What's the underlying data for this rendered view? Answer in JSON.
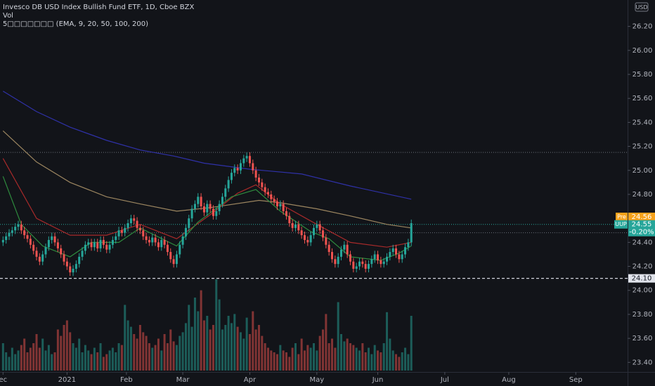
{
  "chart_data": {
    "type": "candlestick",
    "title": "Invesco DB USD Index Bullish Fund ETF, 1D, Cboe BZX",
    "volume_label": "Vol",
    "indicator_label": "5□□□□□□□ (EMA, 9, 20, 50, 100, 200)",
    "currency": "USD",
    "up_color": "#26a69a",
    "down_color": "#ef5350",
    "xlim": [
      -1,
      205
    ],
    "xticks": [
      {
        "value": 0,
        "label": "ec"
      },
      {
        "value": 21,
        "label": "2021"
      },
      {
        "value": 40.5,
        "label": "Feb"
      },
      {
        "value": 59,
        "label": "Mar"
      },
      {
        "value": 81,
        "label": "Apr"
      },
      {
        "value": 103,
        "label": "May"
      },
      {
        "value": 123,
        "label": "Jun"
      },
      {
        "value": 145,
        "label": "Jul"
      },
      {
        "value": 166,
        "label": "Aug"
      },
      {
        "value": 188,
        "label": "Sep"
      }
    ],
    "ylim": [
      23.32,
      26.42
    ],
    "yticks": [
      {
        "value": 26.2,
        "label": "26.20"
      },
      {
        "value": 26,
        "label": "26.00"
      },
      {
        "value": 25.8,
        "label": "25.80"
      },
      {
        "value": 25.6,
        "label": "25.60"
      },
      {
        "value": 25.4,
        "label": "25.40"
      },
      {
        "value": 25.2,
        "label": "25.20"
      },
      {
        "value": 25,
        "label": "25.00"
      },
      {
        "value": 24.8,
        "label": "24.80"
      },
      {
        "value": 24.6,
        "label": "24.60"
      },
      {
        "value": 24.4,
        "label": "24.40"
      },
      {
        "value": 24.2,
        "label": "24.20"
      },
      {
        "value": 24,
        "label": "24.00"
      },
      {
        "value": 23.8,
        "label": "23.80"
      },
      {
        "value": 23.6,
        "label": "23.60"
      },
      {
        "value": 23.4,
        "label": "23.40"
      }
    ],
    "candles": {
      "open": [
        24.4,
        24.42,
        24.45,
        24.48,
        24.5,
        24.53,
        24.55,
        24.5,
        24.46,
        24.43,
        24.38,
        24.33,
        24.28,
        24.24,
        24.3,
        24.36,
        24.42,
        24.45,
        24.4,
        24.35,
        24.3,
        24.24,
        24.2,
        24.15,
        24.18,
        24.22,
        24.28,
        24.33,
        24.38,
        24.4,
        24.36,
        24.4,
        24.35,
        24.42,
        24.38,
        24.34,
        24.38,
        24.42,
        24.45,
        24.5,
        24.48,
        24.52,
        24.56,
        24.6,
        24.58,
        24.52,
        24.5,
        24.45,
        24.42,
        24.4,
        24.44,
        24.4,
        24.36,
        24.42,
        24.38,
        24.32,
        24.26,
        24.22,
        24.3,
        24.38,
        24.45,
        24.52,
        24.6,
        24.68,
        24.72,
        24.78,
        24.7,
        24.65,
        24.72,
        24.68,
        24.62,
        24.66,
        24.72,
        24.78,
        24.85,
        24.92,
        24.98,
        25.02,
        25.0,
        25.06,
        25.1,
        25.12,
        25.06,
        25.0,
        24.94,
        24.9,
        24.86,
        24.82,
        24.8,
        24.76,
        24.74,
        24.7,
        24.72,
        24.66,
        24.62,
        24.56,
        24.52,
        24.55,
        24.5,
        24.46,
        24.42,
        24.4,
        24.46,
        24.52,
        24.55,
        24.5,
        24.44,
        24.38,
        24.32,
        24.26,
        24.22,
        24.28,
        24.34,
        24.38,
        24.3,
        24.24,
        24.18,
        24.2,
        24.24,
        24.22,
        24.18,
        24.22,
        24.26,
        24.3,
        24.25,
        24.22,
        24.24,
        24.28,
        24.32,
        24.35,
        24.3,
        24.26,
        24.3,
        24.36,
        24.4
      ],
      "high": [
        24.45,
        24.48,
        24.51,
        24.53,
        24.56,
        24.58,
        24.58,
        24.53,
        24.49,
        24.46,
        24.41,
        24.36,
        24.31,
        24.33,
        24.39,
        24.45,
        24.48,
        24.48,
        24.43,
        24.38,
        24.33,
        24.27,
        24.23,
        24.21,
        24.25,
        24.31,
        24.36,
        24.41,
        24.43,
        24.43,
        24.43,
        24.43,
        24.45,
        24.45,
        24.41,
        24.41,
        24.45,
        24.48,
        24.53,
        24.53,
        24.55,
        24.59,
        24.63,
        24.63,
        24.61,
        24.55,
        24.53,
        24.48,
        24.45,
        24.47,
        24.47,
        24.43,
        24.45,
        24.45,
        24.41,
        24.35,
        24.29,
        24.33,
        24.41,
        24.48,
        24.55,
        24.63,
        24.71,
        24.75,
        24.81,
        24.81,
        24.73,
        24.75,
        24.75,
        24.71,
        24.69,
        24.75,
        24.81,
        24.88,
        24.95,
        25.01,
        25.05,
        25.05,
        25.09,
        25.13,
        25.15,
        25.15,
        25.09,
        25.03,
        24.97,
        24.93,
        24.89,
        24.85,
        24.83,
        24.79,
        24.77,
        24.75,
        24.75,
        24.69,
        24.65,
        24.59,
        24.58,
        24.58,
        24.53,
        24.49,
        24.45,
        24.49,
        24.55,
        24.58,
        24.58,
        24.53,
        24.47,
        24.41,
        24.35,
        24.29,
        24.31,
        24.37,
        24.41,
        24.41,
        24.33,
        24.27,
        24.23,
        24.27,
        24.27,
        24.25,
        24.25,
        24.29,
        24.33,
        24.33,
        24.28,
        24.27,
        24.31,
        24.35,
        24.38,
        24.38,
        24.33,
        24.33,
        24.39,
        24.43,
        24.59
      ],
      "low": [
        24.37,
        24.39,
        24.42,
        24.45,
        24.47,
        24.5,
        24.47,
        24.43,
        24.4,
        24.35,
        24.3,
        24.25,
        24.21,
        24.21,
        24.27,
        24.33,
        24.39,
        24.37,
        24.32,
        24.27,
        24.21,
        24.17,
        24.12,
        24.12,
        24.15,
        24.19,
        24.25,
        24.3,
        24.35,
        24.33,
        24.33,
        24.32,
        24.32,
        24.35,
        24.31,
        24.31,
        24.35,
        24.39,
        24.42,
        24.45,
        24.45,
        24.49,
        24.53,
        24.55,
        24.49,
        24.47,
        24.42,
        24.39,
        24.37,
        24.37,
        24.37,
        24.33,
        24.33,
        24.35,
        24.29,
        24.23,
        24.19,
        24.19,
        24.27,
        24.35,
        24.42,
        24.49,
        24.57,
        24.65,
        24.69,
        24.67,
        24.62,
        24.62,
        24.65,
        24.59,
        24.59,
        24.63,
        24.69,
        24.75,
        24.82,
        24.89,
        24.95,
        24.97,
        24.97,
        25.03,
        25.07,
        25.03,
        24.97,
        24.91,
        24.87,
        24.83,
        24.79,
        24.77,
        24.73,
        24.71,
        24.67,
        24.67,
        24.63,
        24.59,
        24.53,
        24.49,
        24.49,
        24.47,
        24.43,
        24.39,
        24.37,
        24.37,
        24.43,
        24.49,
        24.47,
        24.41,
        24.35,
        24.29,
        24.23,
        24.19,
        24.19,
        24.25,
        24.31,
        24.27,
        24.21,
        24.15,
        24.15,
        24.17,
        24.19,
        24.15,
        24.15,
        24.19,
        24.23,
        24.22,
        24.19,
        24.19,
        24.21,
        24.25,
        24.29,
        24.27,
        24.23,
        24.23,
        24.27,
        24.33,
        24.37
      ],
      "close": [
        24.42,
        24.45,
        24.48,
        24.5,
        24.53,
        24.55,
        24.5,
        24.46,
        24.43,
        24.38,
        24.33,
        24.28,
        24.24,
        24.3,
        24.36,
        24.42,
        24.45,
        24.4,
        24.35,
        24.3,
        24.24,
        24.2,
        24.15,
        24.18,
        24.22,
        24.28,
        24.33,
        24.38,
        24.4,
        24.36,
        24.4,
        24.35,
        24.42,
        24.38,
        24.34,
        24.38,
        24.42,
        24.45,
        24.5,
        24.48,
        24.52,
        24.56,
        24.6,
        24.58,
        24.52,
        24.5,
        24.45,
        24.42,
        24.4,
        24.44,
        24.4,
        24.36,
        24.42,
        24.38,
        24.32,
        24.26,
        24.22,
        24.3,
        24.38,
        24.45,
        24.52,
        24.6,
        24.68,
        24.72,
        24.78,
        24.7,
        24.65,
        24.72,
        24.68,
        24.62,
        24.66,
        24.72,
        24.78,
        24.85,
        24.92,
        24.98,
        25.02,
        25.0,
        25.06,
        25.1,
        25.12,
        25.06,
        25.0,
        24.94,
        24.9,
        24.86,
        24.82,
        24.8,
        24.76,
        24.74,
        24.7,
        24.72,
        24.66,
        24.62,
        24.56,
        24.52,
        24.55,
        24.5,
        24.46,
        24.42,
        24.4,
        24.46,
        24.52,
        24.55,
        24.5,
        24.44,
        24.38,
        24.32,
        24.26,
        24.22,
        24.28,
        24.34,
        24.38,
        24.3,
        24.24,
        24.18,
        24.2,
        24.24,
        24.22,
        24.18,
        24.22,
        24.26,
        24.3,
        24.25,
        24.22,
        24.24,
        24.28,
        24.32,
        24.35,
        24.3,
        24.26,
        24.3,
        24.36,
        24.4,
        24.56
      ]
    },
    "volume": [
      30,
      20,
      15,
      25,
      18,
      22,
      28,
      35,
      20,
      25,
      30,
      40,
      25,
      35,
      22,
      28,
      18,
      20,
      45,
      38,
      50,
      55,
      42,
      30,
      25,
      35,
      20,
      28,
      22,
      18,
      25,
      20,
      30,
      15,
      18,
      22,
      25,
      20,
      30,
      28,
      72,
      55,
      48,
      40,
      35,
      50,
      42,
      38,
      30,
      25,
      28,
      35,
      22,
      40,
      30,
      45,
      32,
      28,
      38,
      42,
      52,
      72,
      48,
      80,
      65,
      88,
      55,
      60,
      45,
      50,
      100,
      78,
      45,
      50,
      60,
      52,
      62,
      48,
      42,
      35,
      58,
      40,
      65,
      45,
      50,
      38,
      30,
      25,
      22,
      20,
      18,
      28,
      22,
      20,
      15,
      25,
      30,
      18,
      35,
      22,
      28,
      25,
      30,
      22,
      38,
      45,
      62,
      30,
      35,
      25,
      75,
      40,
      32,
      35,
      30,
      28,
      25,
      22,
      30,
      20,
      25,
      18,
      28,
      22,
      20,
      30,
      64,
      35,
      22,
      18,
      15,
      20,
      25,
      18,
      60
    ],
    "series": [
      {
        "color": "#2f31a8",
        "x": [
          0,
          11,
          22,
          34,
          45,
          56,
          66,
          81,
          98,
          114,
          134
        ],
        "values": [
          25.66,
          25.49,
          25.36,
          25.25,
          25.17,
          25.12,
          25.06,
          25.01,
          24.97,
          24.87,
          24.76
        ]
      },
      {
        "color": "#9c8660",
        "x": [
          0,
          11,
          22,
          34,
          45,
          57,
          68,
          84,
          91,
          103,
          114,
          126,
          134
        ],
        "values": [
          25.33,
          25.07,
          24.9,
          24.78,
          24.72,
          24.66,
          24.69,
          24.75,
          24.73,
          24.68,
          24.62,
          24.55,
          24.52
        ]
      },
      {
        "color": "#a82a2a",
        "x": [
          0,
          11,
          22,
          34,
          45,
          57,
          68,
          77,
          83,
          91,
          103,
          114,
          126,
          134
        ],
        "values": [
          25.1,
          24.6,
          24.46,
          24.46,
          24.55,
          24.43,
          24.63,
          24.81,
          24.88,
          24.72,
          24.55,
          24.4,
          24.36,
          24.4
        ]
      },
      {
        "color": "#2e8b3e",
        "x": [
          0,
          6,
          13,
          22,
          29,
          38,
          45,
          57,
          64,
          75,
          83,
          91,
          101,
          107,
          114,
          124,
          130,
          134
        ],
        "values": [
          24.95,
          24.55,
          24.37,
          24.28,
          24.4,
          24.4,
          24.52,
          24.37,
          24.57,
          24.78,
          24.84,
          24.66,
          24.49,
          24.43,
          24.28,
          24.25,
          24.31,
          24.37
        ]
      }
    ],
    "dotted_lines": [
      25.15,
      24.48,
      24.55
    ],
    "pre": {
      "label": "Pre",
      "value": 24.56
    },
    "last": {
      "symbol": "UUP",
      "value": 24.55,
      "change": {
        "value": -0.2,
        "label": "-0.20%"
      }
    },
    "marker": {
      "value": 24.1,
      "label": "24.10"
    }
  }
}
